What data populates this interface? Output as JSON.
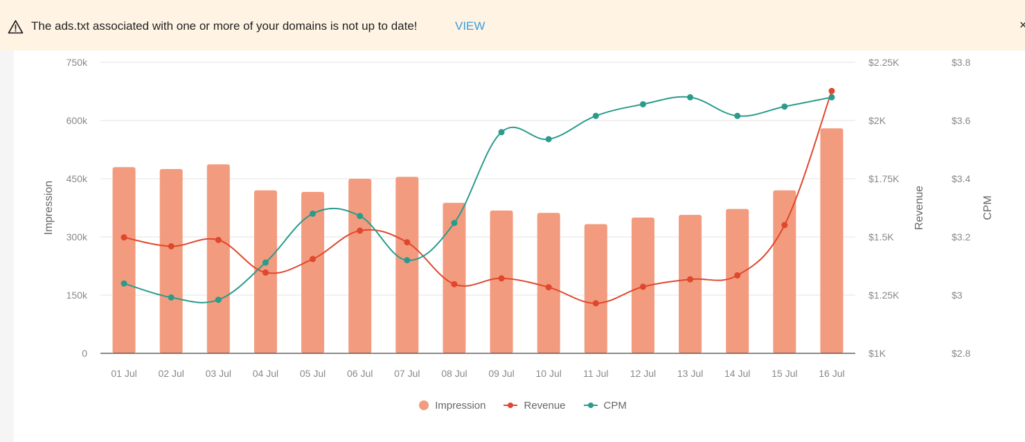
{
  "alert": {
    "icon": "warning-triangle-icon",
    "message": "The ads.txt associated with one or more of your domains is not up to date!",
    "link_label": "VIEW",
    "close_label": "×"
  },
  "colors": {
    "impression": "#f29b7e",
    "revenue": "#e0472d",
    "cpm": "#2a9b8c",
    "alert_bg": "#fff4e4",
    "link": "#3a9bdc"
  },
  "chart_data": {
    "type": "bar",
    "categories": [
      "01 Jul",
      "02 Jul",
      "03 Jul",
      "04 Jul",
      "05 Jul",
      "06 Jul",
      "07 Jul",
      "08 Jul",
      "09 Jul",
      "10 Jul",
      "11 Jul",
      "12 Jul",
      "13 Jul",
      "14 Jul",
      "15 Jul",
      "16 Jul"
    ],
    "series": [
      {
        "name": "Impression",
        "type": "bar",
        "axis": "left",
        "values": [
          480000,
          475000,
          487000,
          420000,
          416000,
          450000,
          455000,
          388000,
          368000,
          362000,
          333000,
          350000,
          357000,
          372000,
          420000,
          580000
        ]
      },
      {
        "name": "Revenue",
        "type": "line",
        "axis": "right1",
        "values": [
          1498,
          1460,
          1487,
          1347,
          1405,
          1527,
          1477,
          1297,
          1322,
          1284,
          1215,
          1286,
          1318,
          1335,
          1551,
          2127
        ]
      },
      {
        "name": "CPM",
        "type": "line",
        "axis": "right2",
        "values": [
          3.1,
          3.04,
          3.03,
          3.19,
          3.4,
          3.39,
          3.2,
          3.36,
          3.75,
          3.72,
          3.82,
          3.87,
          3.9,
          3.82,
          3.86,
          3.9
        ]
      }
    ],
    "axes": {
      "left": {
        "label": "Impression",
        "range": [
          0,
          750000
        ],
        "ticks": [
          "0",
          "150k",
          "300k",
          "450k",
          "600k",
          "750k"
        ]
      },
      "right1": {
        "label": "Revenue",
        "range": [
          1000,
          2250
        ],
        "ticks": [
          "$1K",
          "$1.25K",
          "$1.5K",
          "$1.75K",
          "$2K",
          "$2.25K"
        ]
      },
      "right2": {
        "label": "CPM",
        "range": [
          2.8,
          4.05
        ],
        "ticks": [
          "$2.8",
          "$3",
          "$3.2",
          "$3.4",
          "$3.6",
          "$3.8"
        ]
      }
    },
    "grid": true,
    "legend": {
      "position": "bottom-center",
      "items": [
        "Impression",
        "Revenue",
        "CPM"
      ]
    }
  }
}
